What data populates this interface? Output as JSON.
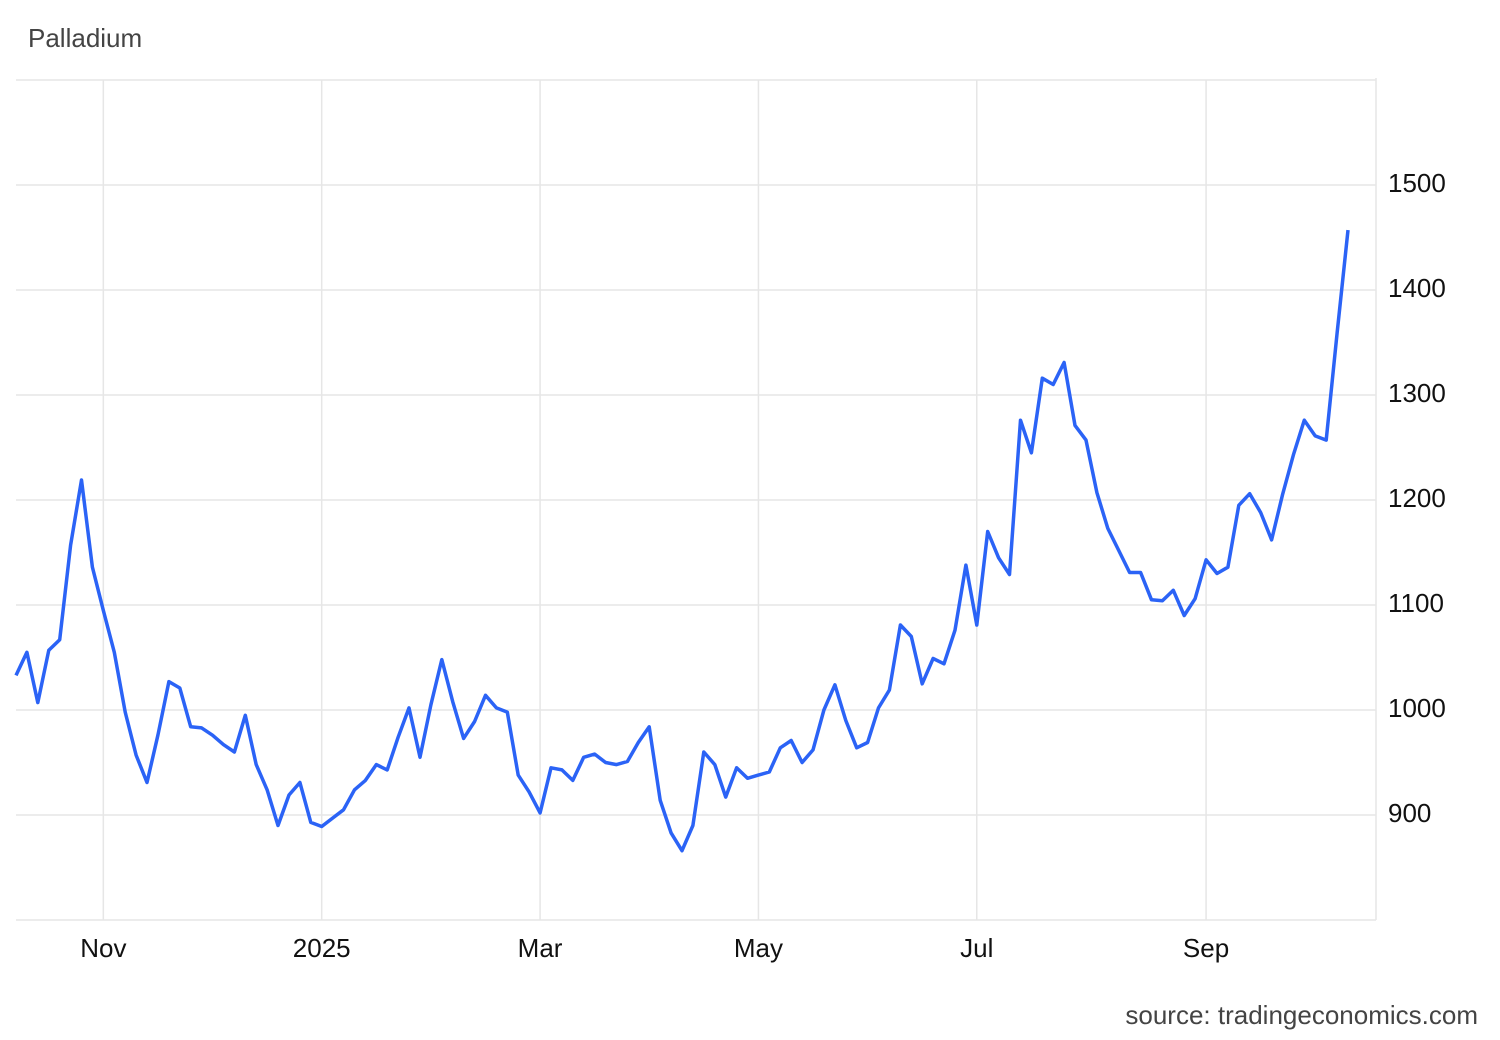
{
  "chart_data": {
    "type": "line",
    "title": "Palladium",
    "source": "source: tradingeconomics.com",
    "categories": [
      null,
      null,
      null,
      null,
      null,
      null,
      null,
      null,
      "Nov",
      null,
      null,
      null,
      null,
      null,
      null,
      null,
      null,
      null,
      null,
      null,
      null,
      null,
      null,
      null,
      null,
      null,
      null,
      null,
      "2025",
      null,
      null,
      null,
      null,
      null,
      null,
      null,
      null,
      null,
      null,
      null,
      null,
      null,
      null,
      null,
      null,
      null,
      null,
      null,
      "Mar",
      null,
      null,
      null,
      null,
      null,
      null,
      null,
      null,
      null,
      null,
      null,
      null,
      null,
      null,
      null,
      null,
      null,
      null,
      null,
      "May",
      null,
      null,
      null,
      null,
      null,
      null,
      null,
      null,
      null,
      null,
      null,
      null,
      null,
      null,
      null,
      null,
      null,
      null,
      null,
      "Jul",
      null,
      null,
      null,
      null,
      null,
      null,
      null,
      null,
      null,
      null,
      null,
      null,
      null,
      null,
      null,
      null,
      null,
      null,
      null,
      null,
      "Sep",
      null,
      null,
      null,
      null,
      null,
      null,
      null,
      null,
      null,
      null,
      null,
      null,
      null
    ],
    "series": [
      {
        "name": "Palladium",
        "color": "#2b63f6",
        "values": [
          1033,
          1055,
          1007,
          1057,
          1067,
          1157,
          1219,
          1136,
          1095,
          1055,
          998,
          957,
          931,
          976,
          1027,
          1021,
          984,
          983,
          976,
          967,
          960,
          995,
          948,
          924,
          890,
          919,
          931,
          893,
          889,
          897,
          905,
          924,
          933,
          948,
          943,
          974,
          1002,
          955,
          1005,
          1048,
          1008,
          973,
          989,
          1014,
          1002,
          998,
          938,
          922,
          902,
          945,
          943,
          933,
          955,
          958,
          950,
          948,
          951,
          969,
          984,
          914,
          883,
          866,
          890,
          960,
          948,
          917,
          945,
          935,
          938,
          941,
          964,
          971,
          950,
          962,
          1000,
          1024,
          990,
          964,
          969,
          1002,
          1019,
          1081,
          1070,
          1025,
          1049,
          1044,
          1076,
          1138,
          1081,
          1170,
          1145,
          1129,
          1276,
          1245,
          1316,
          1310,
          1331,
          1271,
          1257,
          1207,
          1173,
          1152,
          1131,
          1131,
          1105,
          1104,
          1114,
          1090,
          1106,
          1143,
          1130,
          1136,
          1195,
          1206,
          1188,
          1162,
          1205,
          1243,
          1276,
          1261,
          1257,
          1359,
          1457
        ]
      }
    ],
    "ylim": [
      800,
      1600
    ],
    "yticks": [
      900,
      1000,
      1100,
      1200,
      1300,
      1400,
      1500
    ],
    "grid": true,
    "y_axis_side": "right"
  }
}
